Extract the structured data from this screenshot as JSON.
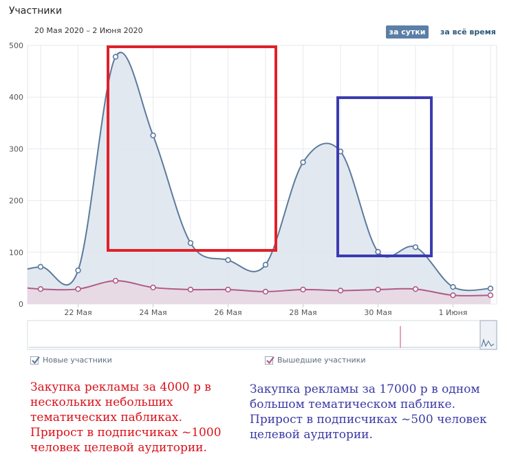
{
  "header": {
    "title": "Участники",
    "period": "20 Мая 2020 – 2 Июня 2020",
    "btn_day": "за сутки",
    "btn_all": "за всё время"
  },
  "legend": {
    "new": "Новые участники",
    "left": "Вышедшие участники"
  },
  "notes": {
    "red": "Закупка рекламы за 4000 р в нескольких небольших тематических пабликах. Прирост в подписчиках ~1000 человек целевой аудитории.",
    "blue": "Закупка рекламы за 17000 р в одном большом тематическом паблике. Прирост в подписчиках ~500 человек целевой аудитории."
  },
  "colors": {
    "new_line": "#5b7a9c",
    "new_fill": "#dfe5ee",
    "left_line": "#b05985",
    "left_fill": "#e8d6e2",
    "red_box": "#e0202a",
    "blue_box": "#3b3bb0",
    "grid": "#e6e9ee"
  },
  "chart_data": {
    "type": "area",
    "x": [
      "20 Мая",
      "21 Мая",
      "22 Мая",
      "23 Мая",
      "24 Мая",
      "25 Мая",
      "26 Мая",
      "27 Мая",
      "28 Мая",
      "29 Мая",
      "30 Мая",
      "31 Мая",
      "1 Июня",
      "2 Июня"
    ],
    "series": [
      {
        "name": "Новые участники",
        "values": [
          55,
          72,
          65,
          478,
          326,
          118,
          85,
          76,
          274,
          295,
          101,
          110,
          33,
          30
        ]
      },
      {
        "name": "Вышедшие участники",
        "values": [
          36,
          29,
          29,
          45,
          32,
          28,
          28,
          24,
          28,
          26,
          28,
          29,
          17,
          17
        ]
      }
    ],
    "ylim": [
      0,
      500
    ],
    "yticks": [
      0,
      100,
      200,
      300,
      400,
      500
    ],
    "xtick_labels": [
      "22 Мая",
      "24 Мая",
      "26 Мая",
      "28 Мая",
      "30 Мая",
      "1 Июня"
    ],
    "grid": true,
    "highlights": [
      {
        "color": "red",
        "from": "23 Мая",
        "to": "27 Мая"
      },
      {
        "color": "blue",
        "from": "29 Мая",
        "to": "31 Мая"
      }
    ]
  }
}
